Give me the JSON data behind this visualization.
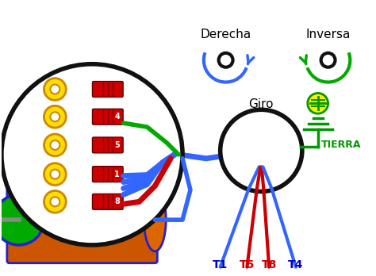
{
  "bg_color": "#ffffff",
  "label_colors": {
    "T1": "#0000cc",
    "T4": "#0000cc",
    "T5": "#cc0000",
    "T8": "#cc0000"
  },
  "blue_wire": "#3366ff",
  "red_wire": "#cc0000",
  "green_wire": "#00aa00",
  "tierra_color": "#009900",
  "giro_text": "Giro",
  "derecha_text": "Derecha",
  "inversa_text": "Inversa",
  "tierra_text": "TIERRA",
  "motor_orange": "#cc5500",
  "motor_edge": "#2222cc",
  "yellow_ring": "#ffdd00",
  "yellow_ring_edge": "#cc8800"
}
